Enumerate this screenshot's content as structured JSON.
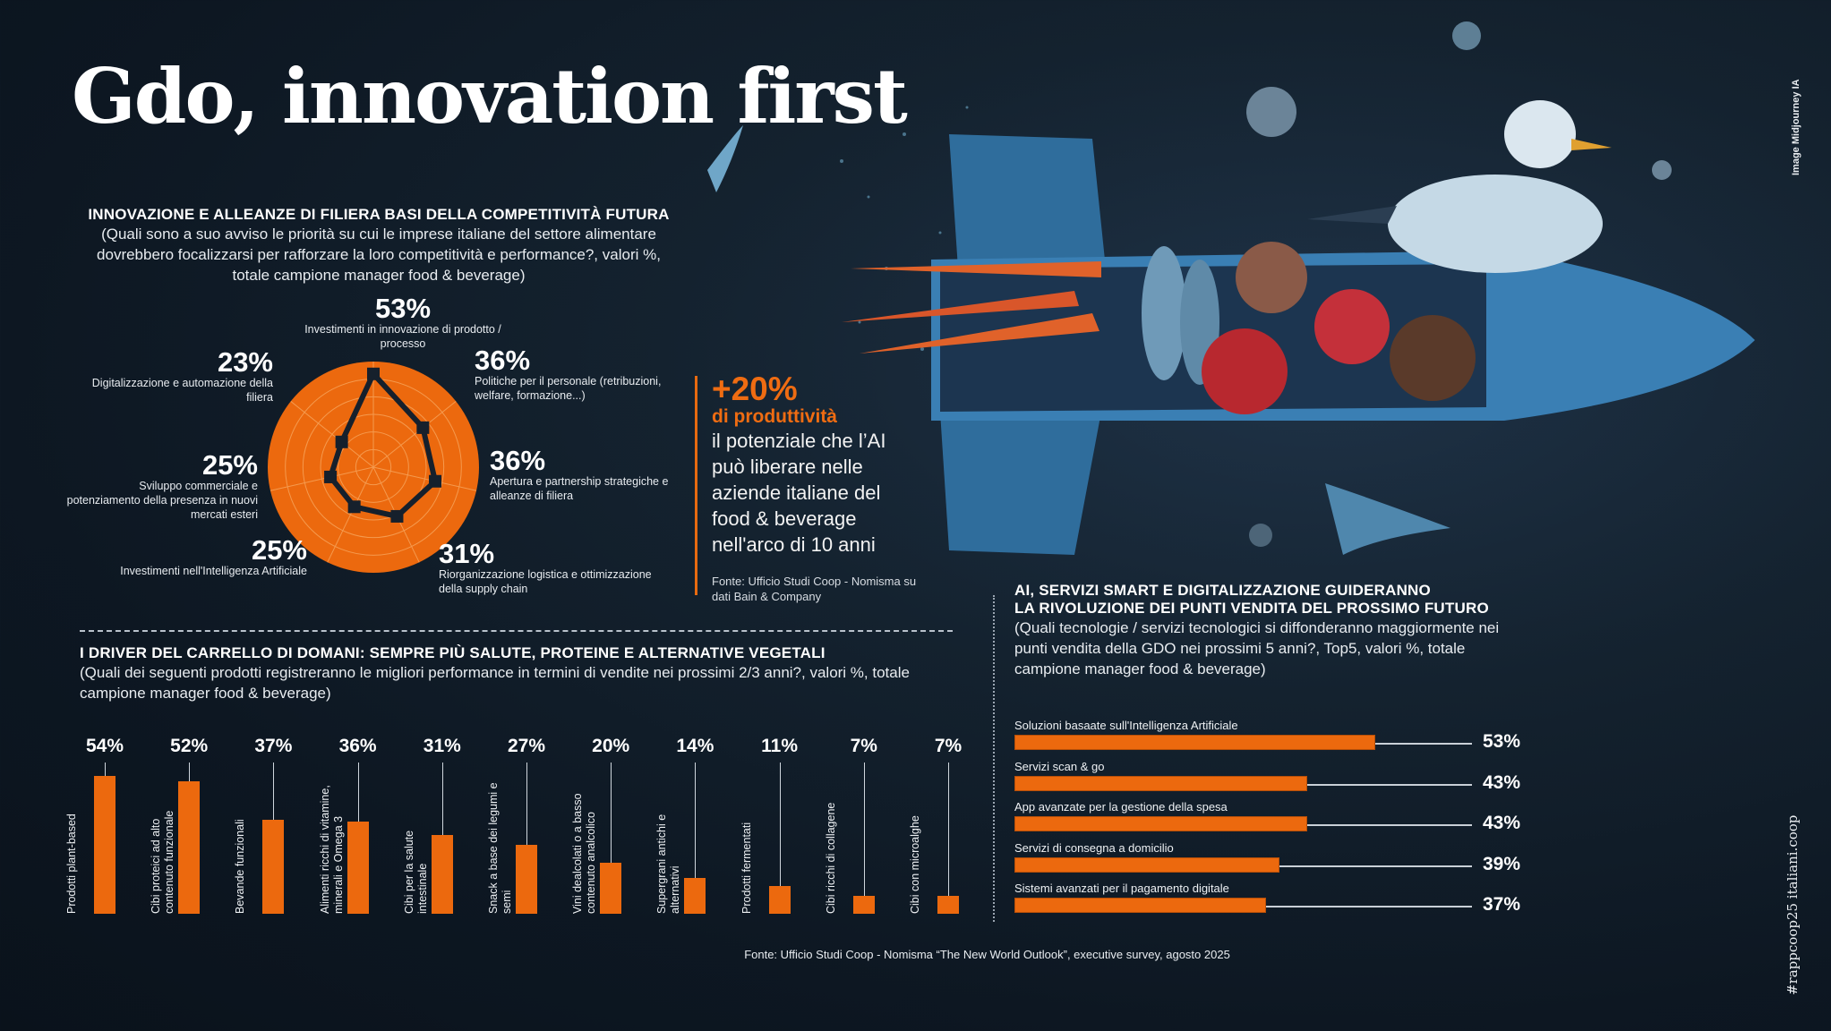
{
  "title": "Gdo, innovation first",
  "credit": "Image Midjourney IA",
  "hashtag": "#rappcoop25 italiani.coop",
  "radar": {
    "heading": "INNOVAZIONE E ALLEANZE DI FILIERA BASI DELLA COMPETITIVITÀ FUTURA",
    "question": "(Quali sono a suo avviso le priorità su cui le imprese italiane del settore alimentare dovrebbero focalizzarsi per rafforzare la loro competitività e performance?, valori %, totale campione manager food & beverage)"
  },
  "callout": {
    "big": "+20%",
    "orange": "di produttività",
    "text": "il potenziale che l’AI può liberare nelle aziende italiane del food & beverage nell'arco di 10 anni",
    "source": "Fonte: Ufficio Studi Coop - Nomisma su dati Bain & Company"
  },
  "bars": {
    "heading": "I DRIVER DEL CARRELLO DI DOMANI: SEMPRE PIÙ SALUTE, PROTEINE E ALTERNATIVE VEGETALI",
    "question": "(Quali dei seguenti prodotti registreranno le migliori performance in termini di vendite nei prossimi 2/3 anni?, valori %, totale campione manager food & beverage)"
  },
  "hbars": {
    "heading1": "AI, SERVIZI SMART E DIGITALIZZAZIONE GUIDERANNO",
    "heading2": "LA RIVOLUZIONE DEI PUNTI VENDITA DEL PROSSIMO FUTURO",
    "question": "(Quali tecnologie / servizi tecnologici si diffonderanno maggiormente nei punti vendita della GDO nei prossimi 5 anni?, Top5, valori %, totale campione manager food & beverage)"
  },
  "footer": "Fonte: Ufficio Studi Coop - Nomisma “The New World Outlook”, executive survey, agosto 2025",
  "colors": {
    "accent": "#ec690e",
    "background": "#0f1a26"
  },
  "chart_data": [
    {
      "type": "radar",
      "title": "INNOVAZIONE E ALLEANZE DI FILIERA BASI DELLA COMPETITIVITÀ FUTURA",
      "unit": "%",
      "categories": [
        "Investimenti in innovazione di prodotto / processo",
        "Politiche per il personale (retribuzioni, welfare, formazione...)",
        "Apertura e partnership strategiche e alleanze di filiera",
        "Riorganizzazione logistica e ottimizzazione della supply chain",
        "Investimenti nell'Intelligenza Artificiale",
        "Sviluppo commerciale e potenziamento della presenza in nuovi mercati esteri",
        "Digitalizzazione e automazione della filiera"
      ],
      "values": [
        53,
        36,
        36,
        31,
        25,
        25,
        23
      ],
      "labels": [
        "53%",
        "36%",
        "36%",
        "31%",
        "25%",
        "25%",
        "23%"
      ],
      "rlim": [
        0,
        60
      ]
    },
    {
      "type": "bar",
      "title": "I DRIVER DEL CARRELLO DI DOMANI",
      "unit": "%",
      "categories": [
        "Prodotti plant-based",
        "Cibi proteici ad alto contenuto funzionale",
        "Bevande funzionali",
        "Alimenti ricchi di vitamine, minerali e Omega 3",
        "Cibi per la salute intestinale",
        "Snack a base dei legumi e semi",
        "Vini dealcolati o a basso contenuto analcolico",
        "Supergrani antichi e alternativi",
        "Prodotti fermentati",
        "Cibi ricchi di collagene",
        "Cibi con microalghe"
      ],
      "values": [
        54,
        52,
        37,
        36,
        31,
        27,
        20,
        14,
        11,
        7,
        7
      ],
      "labels": [
        "54%",
        "52%",
        "37%",
        "36%",
        "31%",
        "27%",
        "20%",
        "14%",
        "11%",
        "7%",
        "7%"
      ],
      "ylim": [
        0,
        60
      ]
    },
    {
      "type": "bar",
      "orientation": "horizontal",
      "title": "AI, SERVIZI SMART E DIGITALIZZAZIONE",
      "unit": "%",
      "categories": [
        "Soluzioni basaate sull'Intelligenza Artificiale",
        "Servizi scan & go",
        "App avanzate per la gestione della spesa",
        "Servizi di consegna a domicilio",
        "Sistemi avanzati per il pagamento digitale"
      ],
      "values": [
        53,
        43,
        43,
        39,
        37
      ],
      "labels": [
        "53%",
        "43%",
        "43%",
        "39%",
        "37%"
      ],
      "xlim": [
        0,
        60
      ]
    }
  ]
}
